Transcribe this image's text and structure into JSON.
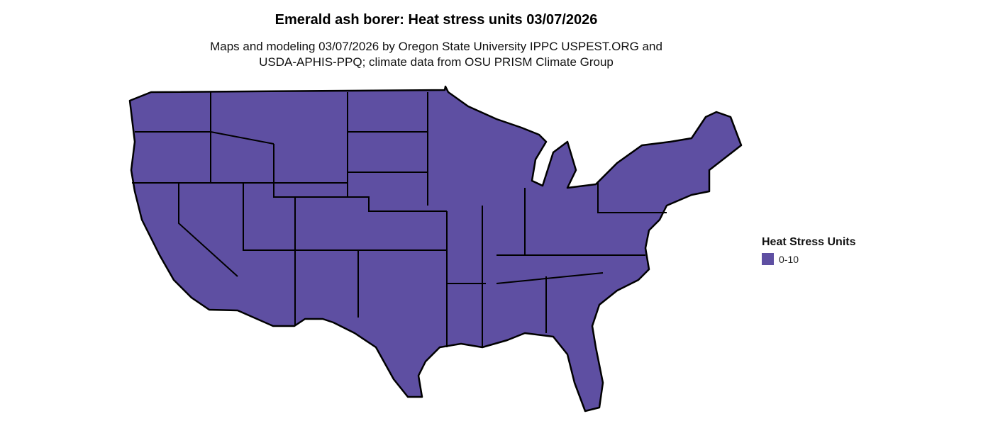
{
  "title": "Emerald ash borer: Heat stress units 03/07/2026",
  "subtitle_line1": "Maps and modeling 03/07/2026 by Oregon State University IPPC USPEST.ORG and",
  "subtitle_line2": "USDA-APHIS-PPQ; climate data from OSU PRISM Climate Group",
  "legend": {
    "title": "Heat Stress Units",
    "items": [
      {
        "label": "0-10",
        "color": "#5e4fa2"
      }
    ]
  },
  "map": {
    "region": "Contiguous United States",
    "fill_color": "#5e4fa2",
    "border_color": "#000000"
  }
}
